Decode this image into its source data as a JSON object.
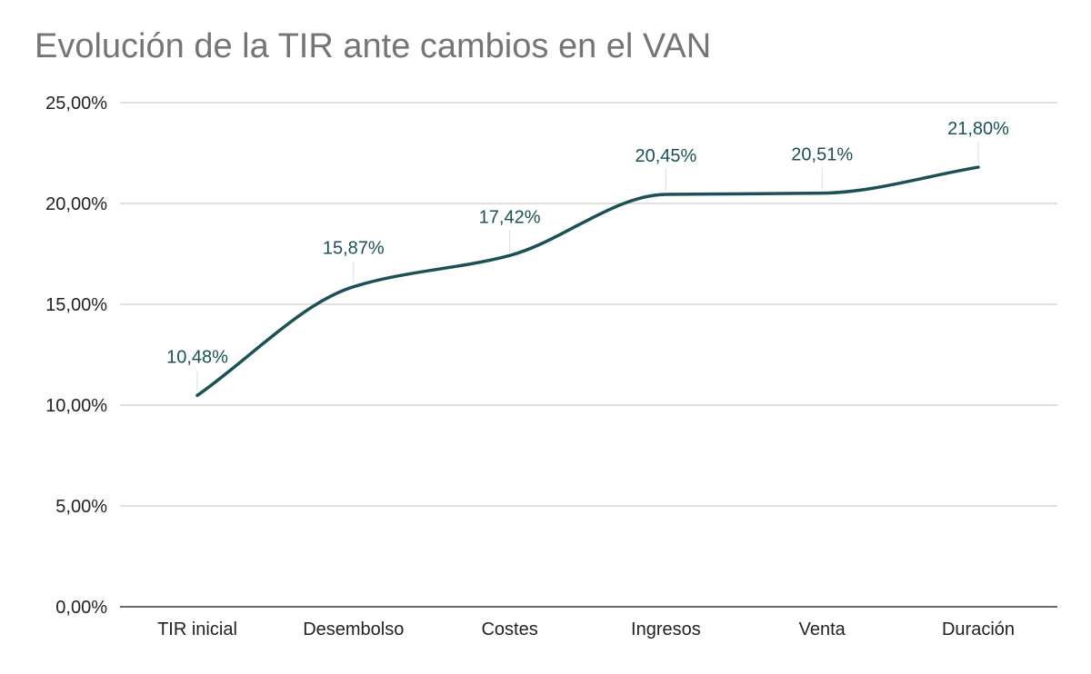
{
  "chart_data": {
    "type": "line",
    "title": "Evolución de la TIR ante cambios en el VAN",
    "categories": [
      "TIR inicial",
      "Desembolso",
      "Costes",
      "Ingresos",
      "Venta",
      "Duración"
    ],
    "series": [
      {
        "values": [
          10.48,
          15.87,
          17.42,
          20.45,
          20.51,
          21.8
        ],
        "labels": [
          "10,48%",
          "15,87%",
          "17,42%",
          "20,45%",
          "20,51%",
          "21,80%"
        ]
      }
    ],
    "ylim": [
      0,
      25
    ],
    "yticks": [
      0,
      5,
      10,
      15,
      20,
      25
    ],
    "ytick_labels": [
      "0,00%",
      "5,00%",
      "10,00%",
      "15,00%",
      "20,00%",
      "25,00%"
    ],
    "smooth": true,
    "grid": true,
    "colors": {
      "line": "#1b5156",
      "label": "#1b5156",
      "title": "#757575",
      "grid": "#cccccc",
      "axis": "#333333",
      "tick": "#222222"
    }
  }
}
